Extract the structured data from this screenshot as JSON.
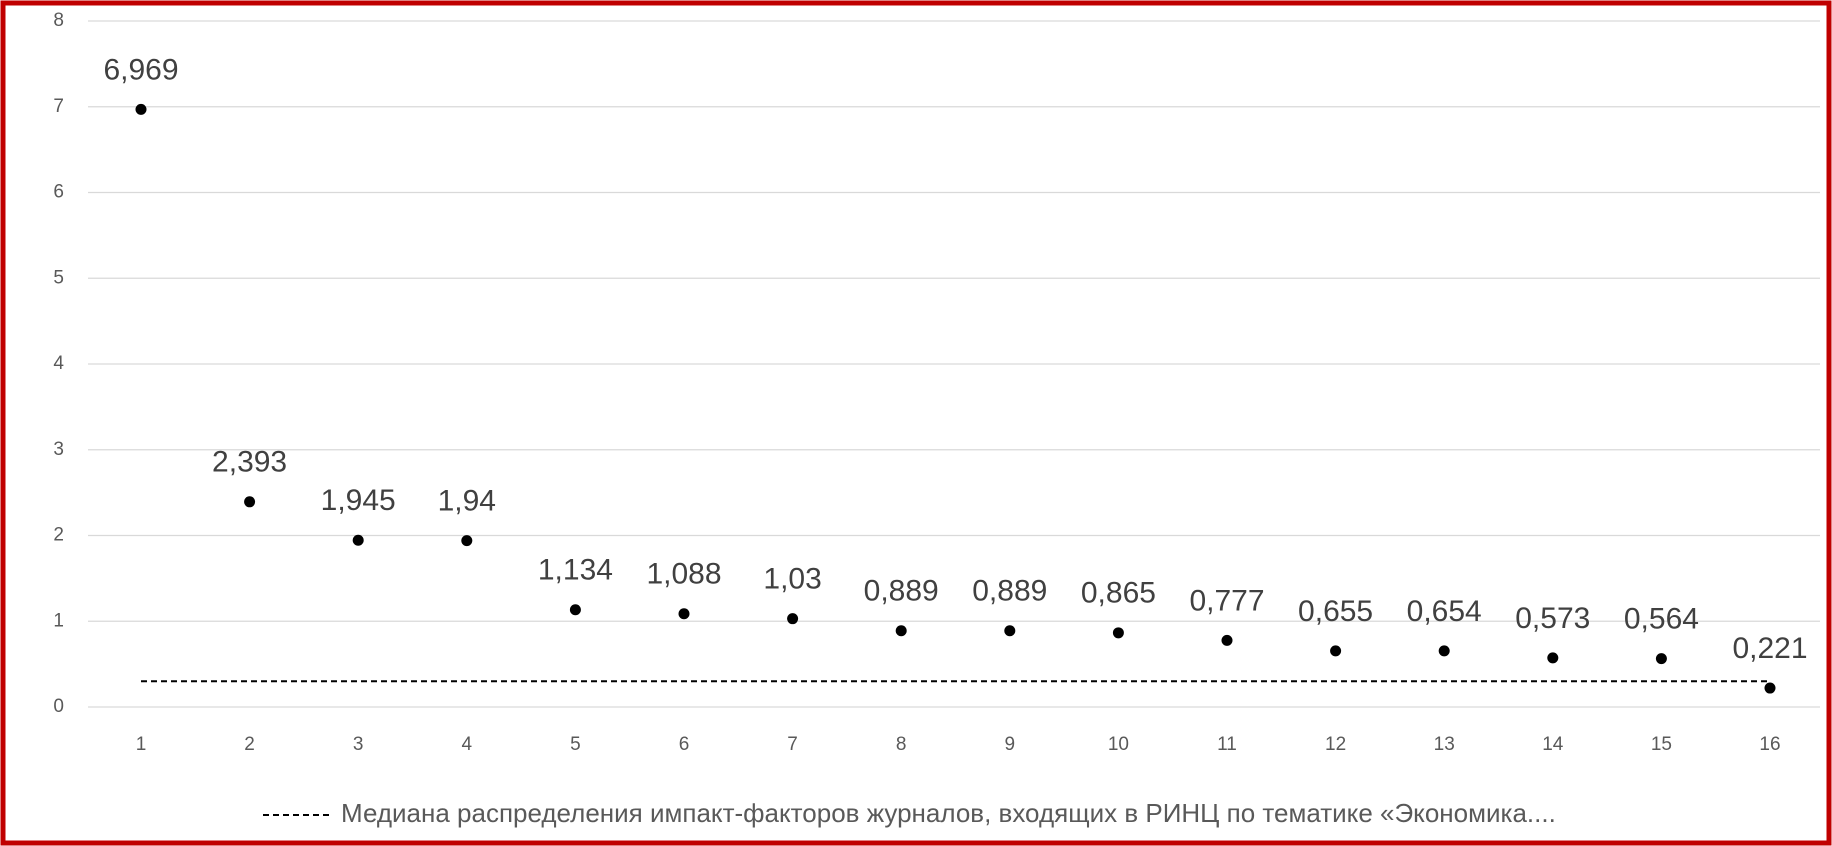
{
  "chart_data": {
    "type": "line",
    "categories": [
      "1",
      "2",
      "3",
      "4",
      "5",
      "6",
      "7",
      "8",
      "9",
      "10",
      "11",
      "12",
      "13",
      "14",
      "15",
      "16"
    ],
    "series": [
      {
        "color": "#000000",
        "marker": true,
        "line": false,
        "values": [
          6.969,
          2.393,
          1.945,
          1.94,
          1.134,
          1.088,
          1.03,
          0.889,
          0.889,
          0.865,
          0.777,
          0.655,
          0.654,
          0.573,
          0.564,
          0.221
        ],
        "value_labels": [
          "6,969",
          "2,393",
          "1,945",
          "1,94",
          "1,134",
          "1,088",
          "1,03",
          "0,889",
          "0,889",
          "0,865",
          "0,777",
          "0,655",
          "0,654",
          "0,573",
          "0,564",
          "0,221"
        ]
      },
      {
        "name": "Медиана распределения импакт-факторов журналов, входящих в РИНЦ по тематике «Экономика....",
        "color": "#000000",
        "marker": false,
        "line": true,
        "dashed": true,
        "values": [
          0.3,
          0.3,
          0.3,
          0.3,
          0.3,
          0.3,
          0.3,
          0.3,
          0.3,
          0.3,
          0.3,
          0.3,
          0.3,
          0.3,
          0.3,
          0.3
        ]
      }
    ],
    "ylim": [
      0,
      8
    ],
    "yticks": [
      0,
      1,
      2,
      3,
      4,
      5,
      6,
      7,
      8
    ],
    "grid": true,
    "legend": "bottom"
  }
}
